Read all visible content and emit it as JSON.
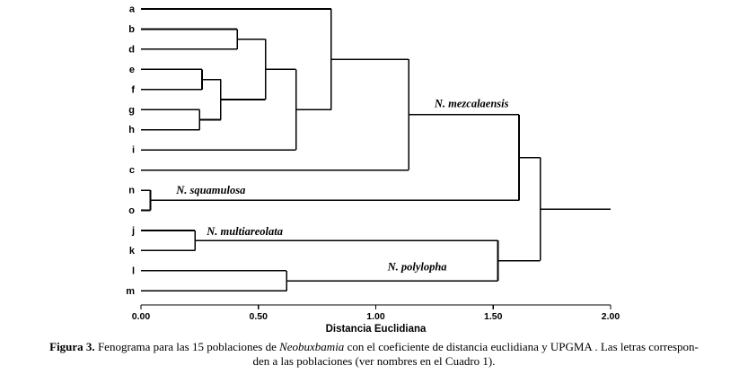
{
  "caption": {
    "label": "Figura 3.",
    "part1": " Fenograma para las 15 poblaciones de ",
    "genus_italic": "Neobuxbamia",
    "part2": " con el coeficiente de distancia euclidiana y UPGMA . Las letras correspon-",
    "line2": "den a las poblaciones (ver nombres en el Cuadro 1)."
  },
  "chart_data": {
    "type": "dendrogram",
    "title": "",
    "xlabel": "Distancia Euclidiana",
    "xlim": [
      0,
      2
    ],
    "x_tick_values": [
      0,
      0.5,
      1.0,
      1.5,
      2.0
    ],
    "x_tick_labels": [
      "0.00",
      "0.50",
      "1.00",
      "1.50",
      "2.00"
    ],
    "orientation": "left-to-right",
    "leaves": [
      "a",
      "b",
      "d",
      "e",
      "f",
      "g",
      "h",
      "i",
      "c",
      "n",
      "o",
      "j",
      "k",
      "l",
      "m"
    ],
    "merges": [
      {
        "id": "ef",
        "children": [
          "e",
          "f"
        ],
        "distance": 0.26
      },
      {
        "id": "gh",
        "children": [
          "g",
          "h"
        ],
        "distance": 0.25
      },
      {
        "id": "efgh",
        "children": [
          "ef",
          "gh"
        ],
        "distance": 0.34
      },
      {
        "id": "bd",
        "children": [
          "b",
          "d"
        ],
        "distance": 0.41
      },
      {
        "id": "bdefgh",
        "children": [
          "bd",
          "efgh"
        ],
        "distance": 0.53
      },
      {
        "id": "bdefgh_i",
        "children": [
          "bdefgh",
          "i"
        ],
        "distance": 0.66
      },
      {
        "id": "a_group",
        "children": [
          "a",
          "bdefgh_i"
        ],
        "distance": 0.81
      },
      {
        "id": "mezcalaensis",
        "children": [
          "a_group",
          "c"
        ],
        "distance": 1.14
      },
      {
        "id": "squamulosa",
        "children": [
          "n",
          "o"
        ],
        "distance": 0.04
      },
      {
        "id": "multiareolata",
        "children": [
          "j",
          "k"
        ],
        "distance": 0.23
      },
      {
        "id": "polylopha",
        "children": [
          "l",
          "m"
        ],
        "distance": 0.62
      },
      {
        "id": "mez_squa",
        "children": [
          "mezcalaensis",
          "squamulosa"
        ],
        "distance": 1.61
      },
      {
        "id": "multi_poly",
        "children": [
          "multiareolata",
          "polylopha"
        ],
        "distance": 1.52
      },
      {
        "id": "root",
        "children": [
          "mez_squa",
          "multi_poly"
        ],
        "distance": 1.7
      }
    ],
    "root_extend_to": 2.0,
    "cluster_labels": [
      {
        "text": "N. mezcalaensis",
        "x": 1.25,
        "row": 4.7
      },
      {
        "text": "N. squamulosa",
        "x": 0.15,
        "row": 9.0
      },
      {
        "text": "N. multiareolata",
        "x": 0.28,
        "row": 11.05
      },
      {
        "text": "N. polylopha",
        "x": 1.05,
        "row": 12.8
      }
    ],
    "line_color": "#000000",
    "grid": false,
    "legend": false
  }
}
